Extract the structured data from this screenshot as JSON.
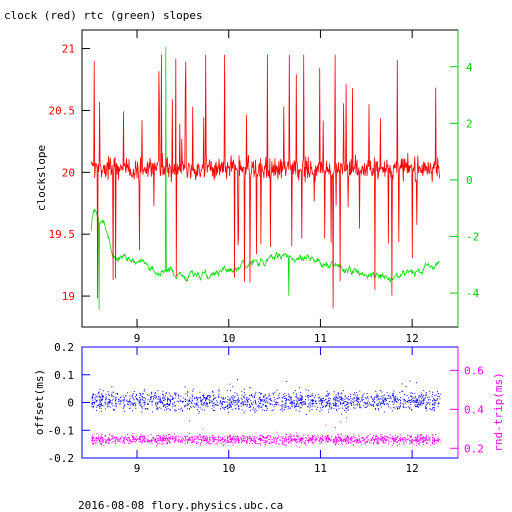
{
  "title": "clock (red) rtc (green) slopes",
  "footer": "2016-08-08 flory.physics.ubc.ca",
  "colors": {
    "clock": "#ff0000",
    "rtc": "#00dd00",
    "offset": "#0000ff",
    "rtt": "#ff00ff",
    "axes": "#000000"
  },
  "chart_data": [
    {
      "type": "line",
      "title": "clock (red) rtc (green) slopes",
      "xlabel": "",
      "ylabel": "clockslope",
      "xlim": [
        8.4,
        12.5
      ],
      "ylim": [
        18.75,
        21.15
      ],
      "y2lim": [
        -5.2,
        5.3
      ],
      "x_ticks": [
        9,
        10,
        11,
        12
      ],
      "y_ticks": [
        19,
        19.5,
        20,
        20.5,
        21
      ],
      "y_tick_labels": [
        "19",
        "19.5",
        "20",
        "20.5",
        "21"
      ],
      "y2_ticks": [
        -4,
        -2,
        0,
        2,
        4
      ],
      "y2_tick_labels": [
        "-4",
        "-2",
        "0",
        "2",
        "4"
      ],
      "series": [
        {
          "axis": "left",
          "baseline": 20.03,
          "noise": 0.15,
          "spike_prob": 0.08,
          "spike_size": 0.45,
          "low": 18.9,
          "high": 20.95
        },
        {
          "axis": "right",
          "baseline": -3.05,
          "noise": 0.2,
          "low": -4.6,
          "high": 4.7
        }
      ]
    },
    {
      "type": "scatter",
      "xlabel": "",
      "ylabel": "offset(ms)",
      "y2label": "rnd-trip(ms)",
      "xlim": [
        8.4,
        12.5
      ],
      "ylim": [
        -0.2,
        0.2
      ],
      "y2lim": [
        0.15,
        0.72
      ],
      "x_ticks": [
        9,
        10,
        11,
        12
      ],
      "y_ticks": [
        -0.2,
        -0.1,
        0,
        0.1,
        0.2
      ],
      "y_tick_labels": [
        "-0.2",
        "-0.1",
        "0",
        "0.1",
        "0.2"
      ],
      "y2_ticks": [
        0.2,
        0.4,
        0.6
      ],
      "y2_tick_labels": [
        "0.2",
        "0.4",
        "0.6"
      ],
      "series": [
        {
          "axis": "left",
          "center": 0.005,
          "spread": 0.038
        },
        {
          "axis": "right",
          "center": 0.245,
          "spread": 0.03
        }
      ]
    }
  ]
}
